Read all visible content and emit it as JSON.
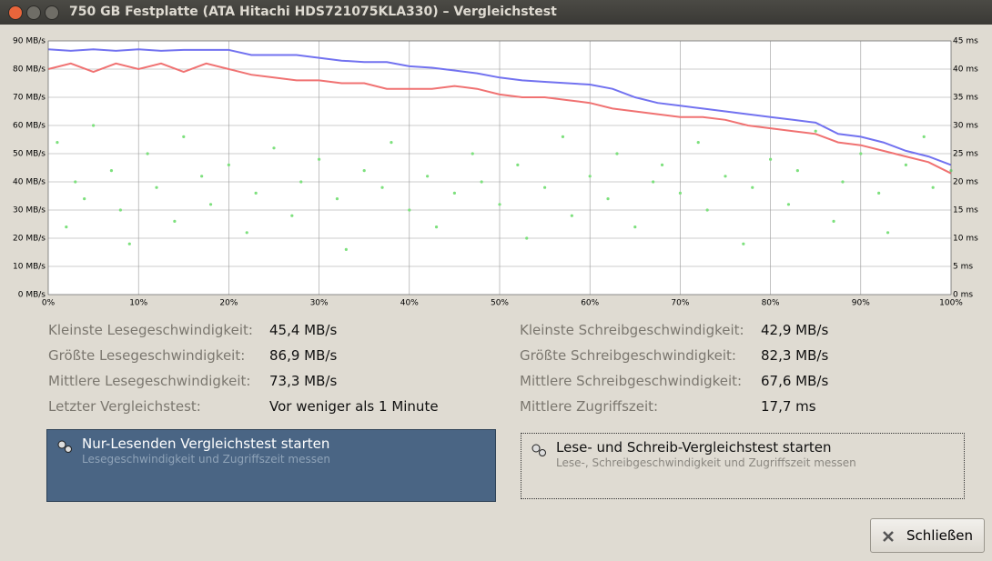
{
  "window": {
    "title": "750 GB Festplatte (ATA Hitachi HDS721075KLA330) – Vergleichstest"
  },
  "chart_data": {
    "type": "line",
    "x": [
      0,
      2.5,
      5,
      7.5,
      10,
      12.5,
      15,
      17.5,
      20,
      22.5,
      25,
      27.5,
      30,
      32.5,
      35,
      37.5,
      40,
      42.5,
      45,
      47.5,
      50,
      52.5,
      55,
      57.5,
      60,
      62.5,
      65,
      67.5,
      70,
      72.5,
      75,
      77.5,
      80,
      82.5,
      85,
      87.5,
      90,
      92.5,
      95,
      97.5,
      100
    ],
    "xlim": [
      0,
      100
    ],
    "xticks": [
      {
        "value": 0,
        "label": "0%"
      },
      {
        "value": 10,
        "label": "10%"
      },
      {
        "value": 20,
        "label": "20%"
      },
      {
        "value": 30,
        "label": "30%"
      },
      {
        "value": 40,
        "label": "40%"
      },
      {
        "value": 50,
        "label": "50%"
      },
      {
        "value": 60,
        "label": "60%"
      },
      {
        "value": 70,
        "label": "70%"
      },
      {
        "value": 80,
        "label": "80%"
      },
      {
        "value": 90,
        "label": "90%"
      },
      {
        "value": 100,
        "label": "100%"
      }
    ],
    "ylim": [
      0,
      90
    ],
    "yticks": [
      {
        "value": 0,
        "label": "0 MB/s"
      },
      {
        "value": 10,
        "label": "10 MB/s"
      },
      {
        "value": 20,
        "label": "20 MB/s"
      },
      {
        "value": 30,
        "label": "30 MB/s"
      },
      {
        "value": 40,
        "label": "40 MB/s"
      },
      {
        "value": 50,
        "label": "50 MB/s"
      },
      {
        "value": 60,
        "label": "60 MB/s"
      },
      {
        "value": 70,
        "label": "70 MB/s"
      },
      {
        "value": 80,
        "label": "80 MB/s"
      },
      {
        "value": 90,
        "label": "90 MB/s"
      }
    ],
    "y2lim": [
      0,
      45
    ],
    "y2ticks": [
      {
        "value": 0,
        "label": "0 ms"
      },
      {
        "value": 5,
        "label": "5 ms"
      },
      {
        "value": 10,
        "label": "10 ms"
      },
      {
        "value": 15,
        "label": "15 ms"
      },
      {
        "value": 20,
        "label": "20 ms"
      },
      {
        "value": 25,
        "label": "25 ms"
      },
      {
        "value": 30,
        "label": "30 ms"
      },
      {
        "value": 35,
        "label": "35 ms"
      },
      {
        "value": 40,
        "label": "40 ms"
      },
      {
        "value": 45,
        "label": "45 ms"
      }
    ],
    "grid": true,
    "series": [
      {
        "type": "scatter",
        "color": "#7de07d",
        "axis": "y2",
        "x": [
          1,
          2,
          3,
          4,
          5,
          7,
          8,
          9,
          11,
          12,
          14,
          15,
          17,
          18,
          20,
          22,
          23,
          25,
          27,
          28,
          30,
          32,
          33,
          35,
          37,
          38,
          40,
          42,
          43,
          45,
          47,
          48,
          50,
          52,
          53,
          55,
          57,
          58,
          60,
          62,
          63,
          65,
          67,
          68,
          70,
          72,
          73,
          75,
          77,
          78,
          80,
          82,
          83,
          85,
          87,
          88,
          90,
          92,
          93,
          95,
          97,
          98,
          100
        ],
        "values": [
          27,
          12,
          20,
          17,
          30,
          22,
          15,
          9,
          25,
          19,
          13,
          28,
          21,
          16,
          23,
          11,
          18,
          26,
          14,
          20,
          24,
          17,
          8,
          22,
          19,
          27,
          15,
          21,
          12,
          18,
          25,
          20,
          16,
          23,
          10,
          19,
          28,
          14,
          21,
          17,
          25,
          12,
          20,
          23,
          18,
          27,
          15,
          21,
          9,
          19,
          24,
          16,
          22,
          29,
          13,
          20,
          25,
          18,
          11,
          23,
          28,
          19,
          22
        ]
      },
      {
        "type": "line",
        "color": "#7272f0",
        "values": [
          87,
          86.5,
          87,
          86.5,
          87,
          86.5,
          86.8,
          86.8,
          86.8,
          85,
          85,
          85,
          84,
          83,
          82.5,
          82.5,
          81,
          80.5,
          79.5,
          78.5,
          77,
          76,
          75.5,
          75,
          74.5,
          73,
          70,
          68,
          67,
          66,
          65,
          64,
          63,
          62,
          61,
          57,
          56,
          54,
          51,
          49,
          46
        ]
      },
      {
        "type": "line",
        "color": "#f07272",
        "values": [
          80,
          82,
          79,
          82,
          80,
          82,
          79,
          82,
          80,
          78,
          77,
          76,
          76,
          75,
          75,
          73,
          73,
          73,
          74,
          73,
          71,
          70,
          70,
          69,
          68,
          66,
          65,
          64,
          63,
          63,
          62,
          60,
          59,
          58,
          57,
          54,
          53,
          51,
          49,
          47,
          43
        ]
      }
    ]
  },
  "stats": {
    "left": [
      {
        "label": "Kleinste Lesegeschwindigkeit:",
        "value": "45,4 MB/s"
      },
      {
        "label": "Größte Lesegeschwindigkeit:",
        "value": "86,9 MB/s"
      },
      {
        "label": "Mittlere Lesegeschwindigkeit:",
        "value": "73,3 MB/s"
      },
      {
        "label": "Letzter Vergleichstest:",
        "value": "Vor weniger als 1 Minute"
      }
    ],
    "right": [
      {
        "label": "Kleinste Schreibgeschwindigkeit:",
        "value": "42,9 MB/s"
      },
      {
        "label": "Größte Schreibgeschwindigkeit:",
        "value": "82,3 MB/s"
      },
      {
        "label": "Mittlere Schreibgeschwindigkeit:",
        "value": "67,6 MB/s"
      },
      {
        "label": "Mittlere Zugriffszeit:",
        "value": "17,7 ms"
      }
    ]
  },
  "buttons": [
    {
      "title": "Nur-Lesenden Vergleichstest starten",
      "subtitle": "Lesegeschwindigkeit und Zugriffszeit messen"
    },
    {
      "title": "Lese- und Schreib-Vergleichstest starten",
      "subtitle": "Lese-, Schreibgeschwindigkeit und Zugriffszeit messen"
    }
  ],
  "close_button": "Schließen"
}
